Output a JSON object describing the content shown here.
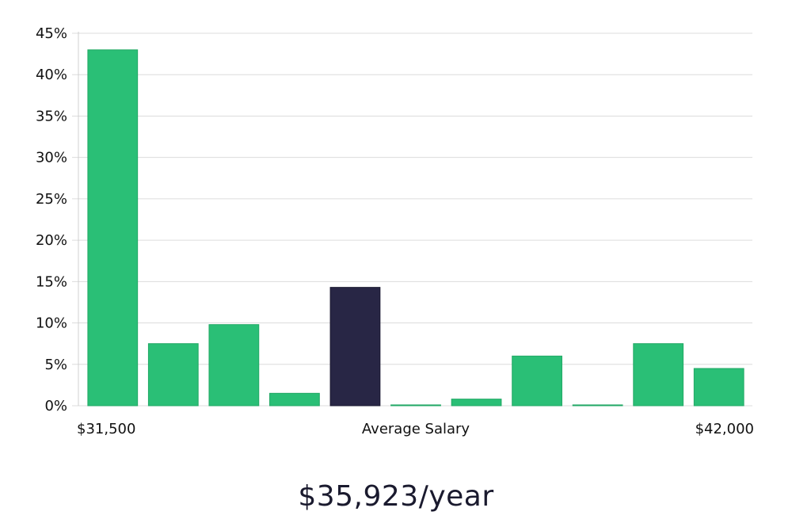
{
  "chart_data": {
    "type": "bar",
    "title": "",
    "xlabel": "",
    "ylabel": "",
    "ylim": [
      0,
      45
    ],
    "y_ticks": [
      "0%",
      "5%",
      "10%",
      "15%",
      "20%",
      "25%",
      "30%",
      "35%",
      "40%",
      "45%"
    ],
    "y_tick_values": [
      0,
      5,
      10,
      15,
      20,
      25,
      30,
      35,
      40,
      45
    ],
    "grid": true,
    "x_labels": {
      "left": "$31,500",
      "center": "Average Salary",
      "right": "$42,000"
    },
    "values": [
      43.0,
      7.5,
      9.8,
      1.5,
      14.3,
      0.1,
      0.8,
      6.0,
      0.1,
      7.5,
      4.5
    ],
    "highlight_index": 4,
    "colors": {
      "bar": "#2abf76",
      "bar_border": "#22a865",
      "highlight": "#282645",
      "highlight_border": "#1a1830"
    }
  },
  "summary": {
    "average_salary": "$35,923/year"
  }
}
